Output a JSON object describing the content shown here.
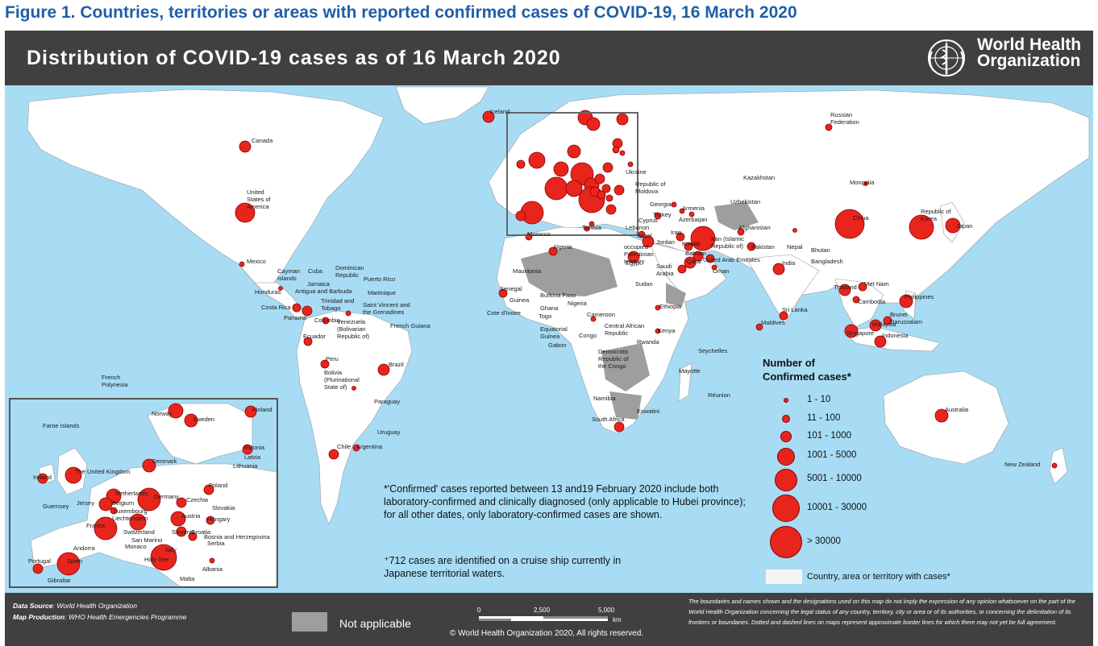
{
  "figure_title": "Figure 1. Countries, territories or areas with reported confirmed cases of COVID-19, 16 March 2020",
  "map_title": "Distribution of COVID-19  cases as of 16 March 2020",
  "who": {
    "line1": "World Health",
    "line2": "Organization"
  },
  "colors": {
    "accent_title": "#1f5fa8",
    "header": "#404040",
    "sea": "#a7dcf4",
    "land": "#ffffff",
    "with_cases": "#f4f4f4",
    "not_applicable": "#9e9e9e",
    "bubble": "#e8251c"
  },
  "legend": {
    "title_line1": "Number of",
    "title_line2": "Confirmed cases*",
    "classes": [
      "1 - 10",
      "11 - 100",
      "101 - 1000",
      "1001 - 5000",
      "5001 - 10000",
      "10001 - 30000",
      "> 30000"
    ],
    "with_cases_label": "Country, area or territory with cases*"
  },
  "footnotes": {
    "confirmed": "*'Confirmed' cases reported between 13 and19 February 2020 include both laboratory-confirmed and clinically diagnosed (only applicable to Hubei province); for all other dates, only laboratory-confirmed cases are shown.",
    "cruise": "⁺712 cases are identified on a cruise ship currently in Japanese territorial waters."
  },
  "footer": {
    "data_source_label": "Data Source",
    "data_source_value": ": World Health Organization",
    "map_production_label": "Map Production",
    "map_production_value": ": WHO Health Emergencies Programme",
    "not_applicable": "Not applicable",
    "scale_0": "0",
    "scale_mid": "2,500",
    "scale_max": "5,000",
    "scale_unit": "km",
    "copyright": "© World Health Organization  2020,  All rights reserved.",
    "disclaimer": "The boundaries and names shown and the designations used on this map do not imply the expression of any opinion whatsoever on the part of the World Health Organization concerning the legal status of any country, territory, city or area or of its authorities, or concerning the delimitation of its frontiers or boundaries. Dotted and dashed lines on maps represent approximate border lines for which there may not yet be full agreement."
  },
  "labels": {
    "canada": "Canada",
    "usa": "United States of America",
    "mexico": "Mexico",
    "cuba": "Cuba",
    "cayman": "Cayman Islands",
    "dominican": "Dominican Republic",
    "puerto_rico": "Puerto Rico",
    "jamaica": "Jamaica",
    "antigua": "Antigua and Barbuda",
    "martinique": "Martinique",
    "honduras": "Honduras",
    "costa_rica": "Costa Rica",
    "panama": "Panama",
    "trinidad": "Trinidad and Tobago",
    "svg": "Saint Vincent and the Grenadines",
    "colombia": "Colombia",
    "venezuela": "Venezuela (Bolivarian Republic of)",
    "guiana": "French Guiana",
    "ecuador": "Ecuador",
    "peru": "Peru",
    "brazil": "Brazil",
    "bolivia": "Bolivia (Plurinational State of)",
    "paraguay": "Paraguay",
    "chile": "Chile",
    "argentina": "Argentina",
    "uruguay": "Uruguay",
    "french_polynesia": "French Polynesia",
    "iceland": "Iceland",
    "russia": "Russian Federation",
    "ukraine": "Ukraine",
    "moldova": "Republic of Moldova",
    "georgia": "Georgia",
    "armenia": "Armenia",
    "azerbaijan": "Azerbaijan",
    "turkey": "Turkey",
    "kazakhstan": "Kazakhstan",
    "uzbekistan": "Uzbekistan",
    "mongolia": "Mongolia",
    "china": "China",
    "korea": "Republic of Korea",
    "japan": "Japan",
    "morocco": "Morocco",
    "algeria": "Algeria",
    "tunisia": "Tunisia",
    "egypt": "Egypt",
    "sudan": "Sudan",
    "mauritania": "Mauritania",
    "senegal": "Senegal",
    "guinea": "Guinea",
    "burkina": "Burkina Faso",
    "nigeria": "Nigeria",
    "cote": "Cote d'Ivoire",
    "ghana": "Ghana",
    "togo": "Togo",
    "cameroon": "Cameroon",
    "car": "Central African Republic",
    "eq_guinea": "Equatorial Guinea",
    "gabon": "Gabon",
    "congo": "Congo",
    "drc": "Democratic Republic of the Congo",
    "ethiopia": "Ethiopia",
    "kenya": "Kenya",
    "rwanda": "Rwanda",
    "seychelles": "Seychelles",
    "mayotte": "Mayotte",
    "reunion": "Réunion",
    "namibia": "Namibia",
    "eswatini": "Eswatini",
    "south_africa": "South Africa",
    "lebanon": "Lebanon",
    "cyprus": "Cyprus",
    "israel": "Israel",
    "jordan": "Jordan",
    "palestine": "occupied Palestinian territory",
    "iraq": "Iraq",
    "iran": "Iran (Islamic Republic of)",
    "kuwait": "Kuwait",
    "bahrain": "Bahrain",
    "qatar": "Qatar",
    "saudi": "Saudi Arabia",
    "uae": "United Arab Emirates",
    "oman": "Oman",
    "afghanistan": "Afghanistan",
    "pakistan": "Pakistan",
    "india": "India",
    "nepal": "Nepal",
    "bhutan": "Bhutan",
    "bangladesh": "Bangladesh",
    "maldives": "Maldives",
    "sri_lanka": "Sri Lanka",
    "thailand": "Thailand",
    "cambodia": "Cambodia",
    "viet_nam": "Viet Nam",
    "philippines": "Philippines",
    "malaysia": "Malaysia",
    "brunei": "Brunei Darussalam",
    "singapore": "Singapore",
    "indonesia": "Indonesia",
    "australia": "Australia",
    "new_zealand": "New Zealand"
  },
  "inset_labels": {
    "faroe": "Faroe Islands",
    "norway": "Norway",
    "sweden": "Sweden",
    "finland": "Finland",
    "estonia": "Estonia",
    "latvia": "Latvia",
    "lithuania": "Lithuania",
    "denmark": "Denmark",
    "uk": "The United Kingdom",
    "ireland": "Ireland",
    "netherlands": "Netherlands",
    "belgium": "Belgium",
    "luxembourg": "Luxembourg",
    "germany": "Germany",
    "poland": "Poland",
    "czechia": "Czechia",
    "slovakia": "Slovakia",
    "austria": "Austria",
    "hungary": "Hungary",
    "guernsey": "Guernsey",
    "jersey": "Jersey",
    "france": "France",
    "liechtenstein": "Liechtenstein",
    "switzerland": "Switzerland",
    "slovenia": "Slovenia",
    "croatia": "Croatia",
    "serbia": "Serbia",
    "bosnia": "Bosnia and Herzegovina",
    "san_marino": "San Marino",
    "monaco": "Monaco",
    "andorra": "Andorra",
    "spain": "Spain",
    "portugal": "Portugal",
    "italy": "Italy",
    "holy_see": "Holy See",
    "albania": "Albania",
    "gibraltar": "Gibraltar",
    "malta": "Malta"
  }
}
